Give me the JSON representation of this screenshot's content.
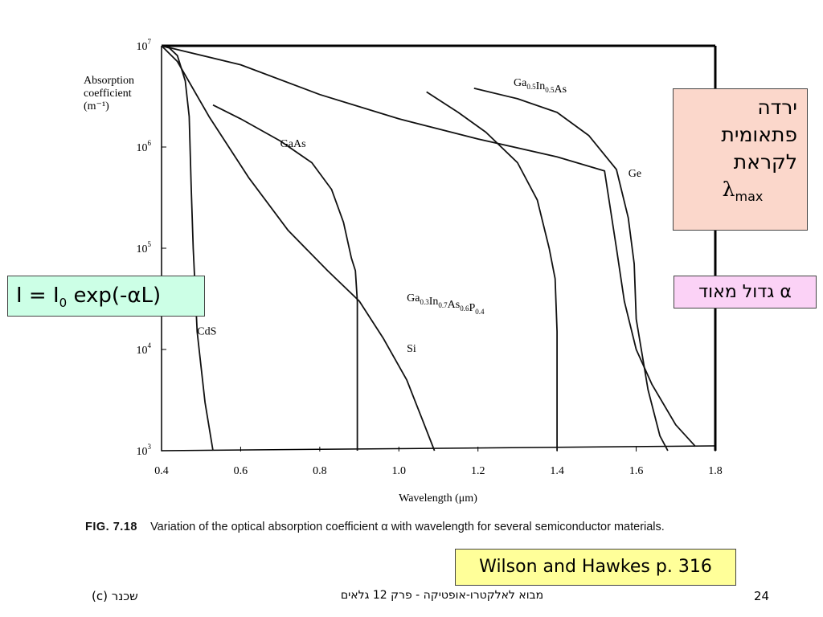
{
  "chart_data": {
    "type": "line",
    "title": "",
    "ylabel": "Absorption coefficient (m⁻¹)",
    "ylabel_lines": [
      "Absorption",
      "coefficient",
      "(m⁻¹)"
    ],
    "xlabel": "Wavelength  (μm)",
    "xlim": [
      0.4,
      1.8
    ],
    "ylim": [
      1000,
      10000000
    ],
    "yscale": "log",
    "x_ticks": [
      "0.4",
      "0.6",
      "0.8",
      "1.0",
      "1.2",
      "1.4",
      "1.6",
      "1.8"
    ],
    "y_ticks": [
      {
        "value": 1000,
        "base": "10",
        "exp": "3"
      },
      {
        "value": 10000,
        "base": "10",
        "exp": "4"
      },
      {
        "value": 100000,
        "base": "10",
        "exp": "5"
      },
      {
        "value": 1000000,
        "base": "10",
        "exp": "6"
      },
      {
        "value": 10000000,
        "base": "10",
        "exp": "7"
      }
    ],
    "grid": false,
    "series": [
      {
        "name": "CdS",
        "points": [
          [
            0.4,
            10000000
          ],
          [
            0.42,
            9500000
          ],
          [
            0.44,
            8000000
          ],
          [
            0.46,
            4500000
          ],
          [
            0.47,
            2000000
          ],
          [
            0.475,
            400000
          ],
          [
            0.48,
            100000
          ],
          [
            0.49,
            15000
          ],
          [
            0.51,
            3000
          ],
          [
            0.53,
            1000
          ]
        ]
      },
      {
        "name": "GaAs",
        "points": [
          [
            0.53,
            2600000
          ],
          [
            0.6,
            1900000
          ],
          [
            0.7,
            1150000
          ],
          [
            0.78,
            700000
          ],
          [
            0.83,
            380000
          ],
          [
            0.86,
            180000
          ],
          [
            0.88,
            80000
          ],
          [
            0.89,
            60000
          ],
          [
            0.895,
            30000
          ],
          [
            0.895,
            10000
          ],
          [
            0.895,
            1000
          ]
        ]
      },
      {
        "name": "Si",
        "points": [
          [
            0.4,
            10000000
          ],
          [
            0.44,
            7000000
          ],
          [
            0.52,
            2000000
          ],
          [
            0.62,
            500000
          ],
          [
            0.72,
            150000
          ],
          [
            0.82,
            60000
          ],
          [
            0.9,
            30000
          ],
          [
            0.96,
            13000
          ],
          [
            1.02,
            5000
          ],
          [
            1.06,
            2000
          ],
          [
            1.09,
            1000
          ]
        ]
      },
      {
        "name": "Ge",
        "points": [
          [
            0.4,
            10000000
          ],
          [
            0.6,
            6500000
          ],
          [
            0.8,
            3300000
          ],
          [
            1.0,
            1900000
          ],
          [
            1.2,
            1200000
          ],
          [
            1.4,
            800000
          ],
          [
            1.52,
            580000
          ],
          [
            1.55,
            100000
          ],
          [
            1.57,
            30000
          ],
          [
            1.6,
            10000
          ],
          [
            1.64,
            4500
          ],
          [
            1.7,
            1800
          ],
          [
            1.75,
            1100
          ]
        ]
      },
      {
        "name": "Ga0.3In0.7As0.6P0.4",
        "points": [
          [
            1.07,
            3500000
          ],
          [
            1.15,
            2200000
          ],
          [
            1.22,
            1400000
          ],
          [
            1.3,
            700000
          ],
          [
            1.35,
            300000
          ],
          [
            1.38,
            100000
          ],
          [
            1.395,
            50000
          ],
          [
            1.4,
            15000
          ],
          [
            1.4,
            1000
          ]
        ]
      },
      {
        "name": "Ga0.5In0.5As",
        "points": [
          [
            1.19,
            3800000
          ],
          [
            1.3,
            3000000
          ],
          [
            1.4,
            2200000
          ],
          [
            1.48,
            1300000
          ],
          [
            1.55,
            600000
          ],
          [
            1.58,
            200000
          ],
          [
            1.595,
            70000
          ],
          [
            1.6,
            20000
          ],
          [
            1.63,
            4000
          ],
          [
            1.66,
            1400
          ],
          [
            1.68,
            1000
          ]
        ]
      }
    ],
    "series_labels": [
      {
        "series": "CdS",
        "text": "CdS",
        "at": [
          0.49,
          14000
        ]
      },
      {
        "series": "GaAs",
        "text": "GaAs",
        "at": [
          0.7,
          1000000
        ]
      },
      {
        "series": "Si",
        "text": "Si",
        "at": [
          1.02,
          9500
        ]
      },
      {
        "series": "Ge",
        "text": "Ge",
        "at": [
          1.58,
          510000
        ]
      },
      {
        "series": "Ga0.3In0.7As0.6P0.4",
        "at": [
          1.02,
          30000
        ]
      },
      {
        "series": "Ga0.5In0.5As",
        "at": [
          1.29,
          4000000
        ]
      }
    ]
  },
  "callouts": {
    "drop_lines": [
      "ירדה",
      "פתאומית",
      "לקראת"
    ],
    "drop_lambda": "λ",
    "drop_lambda_sub": "max",
    "alpha_text": "α גדול מאוד",
    "eq_prefix": "I = I",
    "eq_sub": "0",
    "eq_suffix": " exp(-αL)",
    "reference": "Wilson and Hawkes p. 316"
  },
  "caption": {
    "label": "FIG. 7.18",
    "text": "Variation of the optical absorption coefficient α with wavelength for several semiconductor materials."
  },
  "footer": {
    "left": "(c)   שכנר",
    "center": "מבוא לאלקטרו-אופטיקה - פרק 12 גלאים",
    "page": "24"
  }
}
